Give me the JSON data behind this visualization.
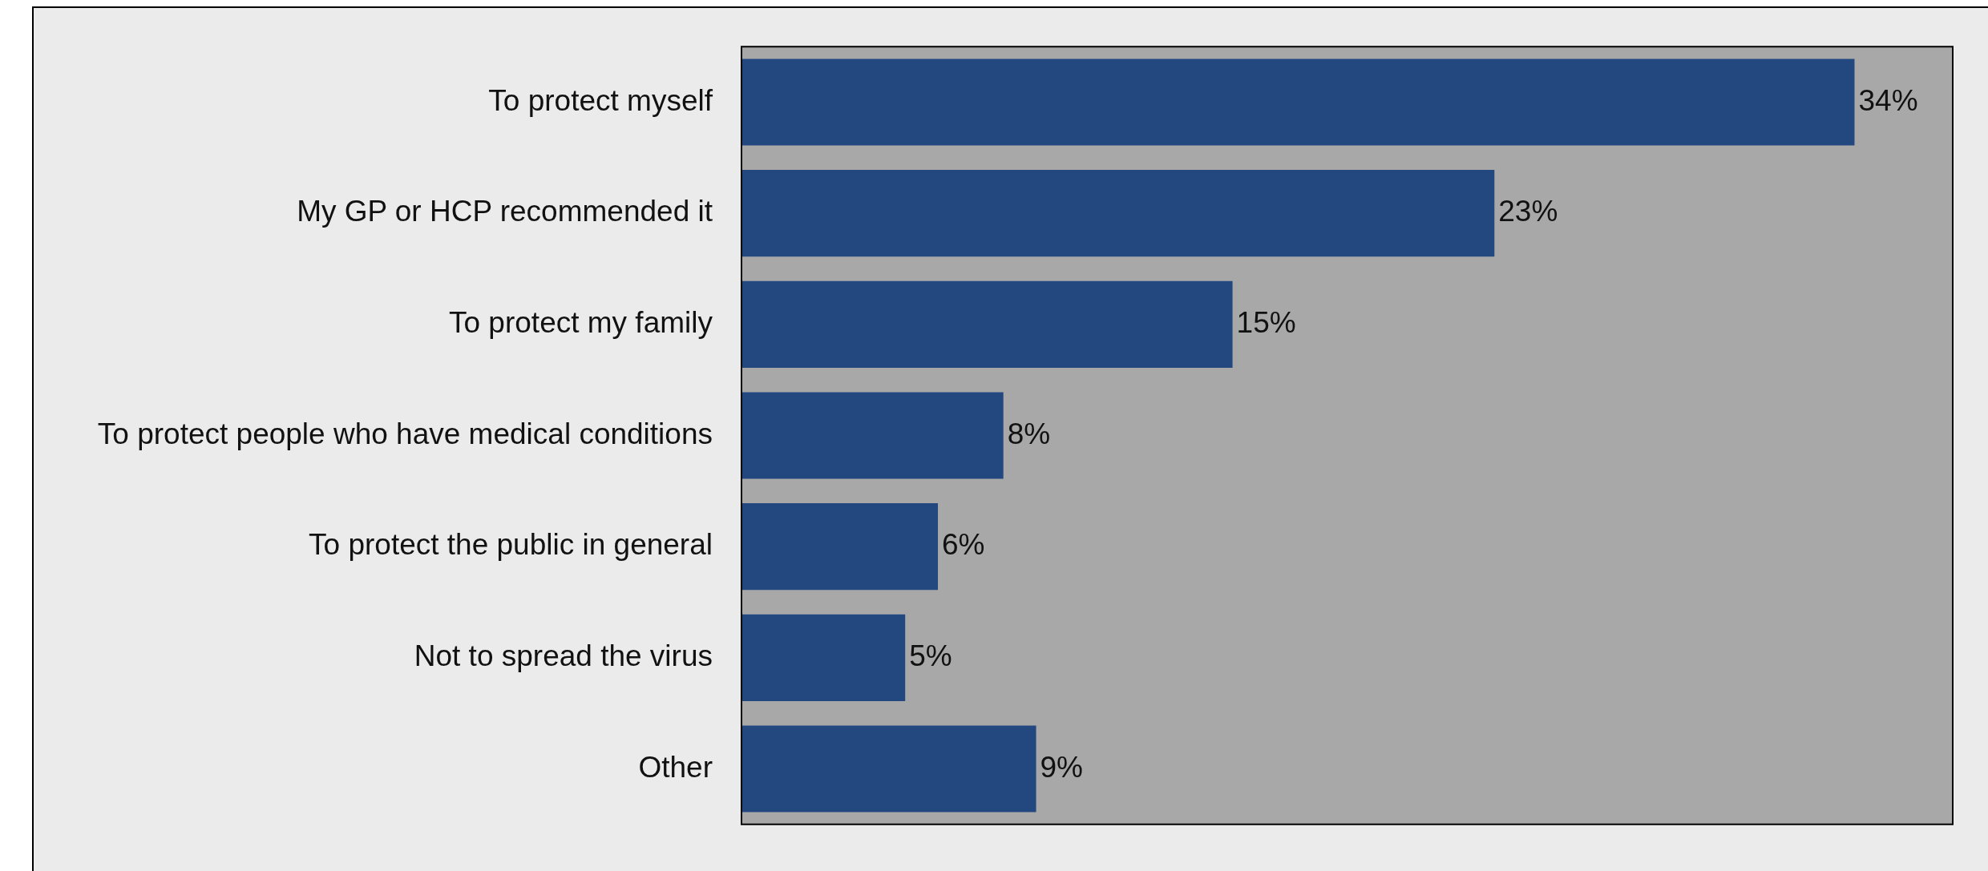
{
  "chart_data": {
    "type": "bar",
    "orientation": "horizontal",
    "categories": [
      "To protect myself",
      "My GP or HCP recommended it",
      "To protect my family",
      "To protect people who have medical conditions",
      "To protect the public in general",
      "Not to spread the virus",
      "Other"
    ],
    "values": [
      34,
      23,
      15,
      8,
      6,
      5,
      9
    ],
    "value_labels": [
      "34%",
      "23%",
      "15%",
      "8%",
      "6%",
      "5%",
      "9%"
    ],
    "color": "#23487f",
    "xlim": [
      0,
      37
    ],
    "tick_labels": "y"
  }
}
